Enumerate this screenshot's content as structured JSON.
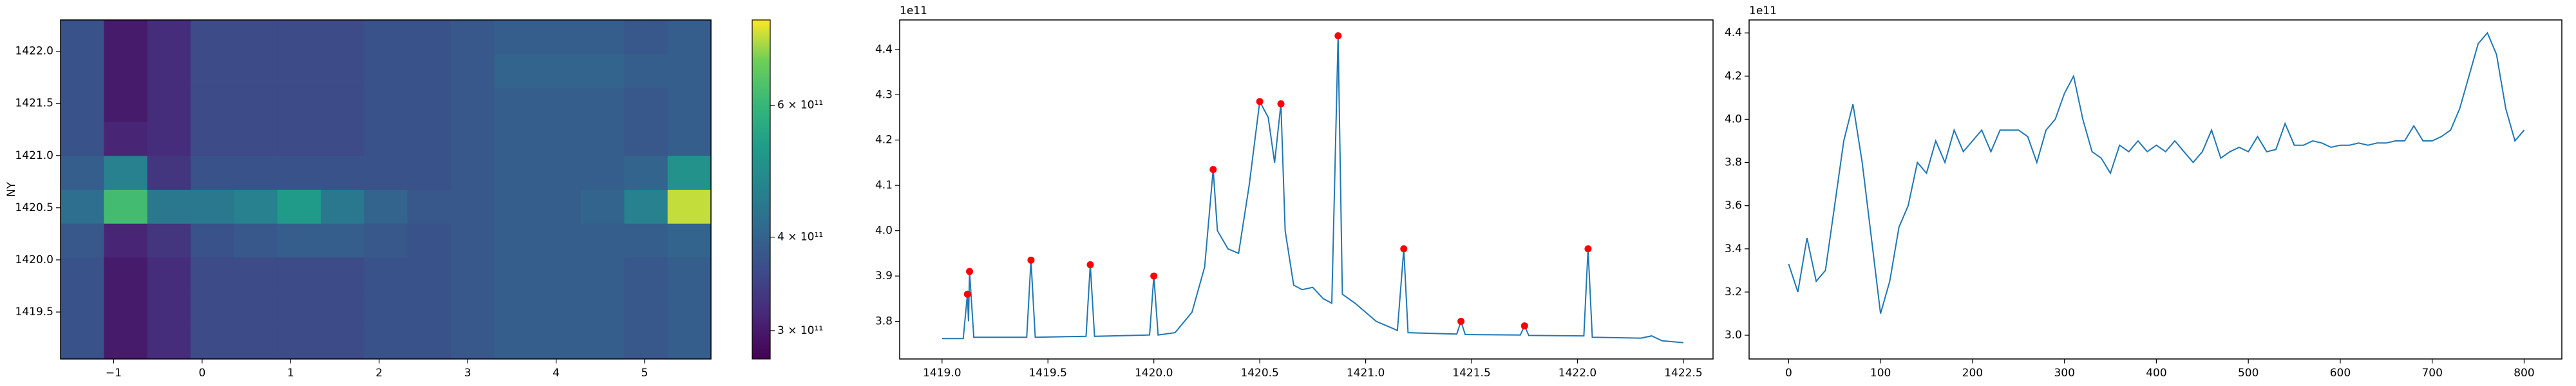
{
  "chart_data": [
    {
      "type": "heatmap",
      "ylabel": "NY",
      "scale": "log",
      "x": [
        -1.355,
        -0.865,
        -0.375,
        0.115,
        0.605,
        1.095,
        1.585,
        2.075,
        2.565,
        3.055,
        3.545,
        4.035,
        4.525,
        5.015,
        5.505
      ],
      "y": [
        1419.2125,
        1419.5375,
        1419.8625,
        1420.1875,
        1420.5125,
        1420.8375,
        1421.1625,
        1421.4875,
        1421.8125,
        1422.1375
      ],
      "z": [
        [
          370000000000.0,
          300000000000.0,
          320000000000.0,
          360000000000.0,
          360000000000.0,
          360000000000.0,
          360000000000.0,
          370000000000.0,
          370000000000.0,
          380000000000.0,
          390000000000.0,
          390000000000.0,
          390000000000.0,
          380000000000.0,
          390000000000.0
        ],
        [
          370000000000.0,
          300000000000.0,
          320000000000.0,
          360000000000.0,
          360000000000.0,
          360000000000.0,
          360000000000.0,
          370000000000.0,
          370000000000.0,
          380000000000.0,
          390000000000.0,
          390000000000.0,
          390000000000.0,
          380000000000.0,
          390000000000.0
        ],
        [
          370000000000.0,
          300000000000.0,
          320000000000.0,
          360000000000.0,
          360000000000.0,
          360000000000.0,
          360000000000.0,
          370000000000.0,
          370000000000.0,
          380000000000.0,
          390000000000.0,
          390000000000.0,
          390000000000.0,
          380000000000.0,
          390000000000.0
        ],
        [
          380000000000.0,
          310000000000.0,
          330000000000.0,
          370000000000.0,
          380000000000.0,
          390000000000.0,
          390000000000.0,
          380000000000.0,
          370000000000.0,
          380000000000.0,
          390000000000.0,
          390000000000.0,
          390000000000.0,
          390000000000.0,
          400000000000.0
        ],
        [
          420000000000.0,
          620000000000.0,
          440000000000.0,
          440000000000.0,
          460000000000.0,
          520000000000.0,
          440000000000.0,
          400000000000.0,
          380000000000.0,
          380000000000.0,
          390000000000.0,
          390000000000.0,
          400000000000.0,
          460000000000.0,
          740000000000.0
        ],
        [
          390000000000.0,
          460000000000.0,
          330000000000.0,
          370000000000.0,
          370000000000.0,
          370000000000.0,
          370000000000.0,
          370000000000.0,
          370000000000.0,
          380000000000.0,
          390000000000.0,
          390000000000.0,
          390000000000.0,
          400000000000.0,
          500000000000.0
        ],
        [
          370000000000.0,
          310000000000.0,
          320000000000.0,
          360000000000.0,
          360000000000.0,
          360000000000.0,
          360000000000.0,
          370000000000.0,
          370000000000.0,
          380000000000.0,
          390000000000.0,
          390000000000.0,
          390000000000.0,
          380000000000.0,
          390000000000.0
        ],
        [
          370000000000.0,
          300000000000.0,
          320000000000.0,
          360000000000.0,
          360000000000.0,
          360000000000.0,
          360000000000.0,
          370000000000.0,
          370000000000.0,
          380000000000.0,
          390000000000.0,
          390000000000.0,
          390000000000.0,
          380000000000.0,
          390000000000.0
        ],
        [
          370000000000.0,
          300000000000.0,
          320000000000.0,
          360000000000.0,
          360000000000.0,
          360000000000.0,
          360000000000.0,
          370000000000.0,
          370000000000.0,
          380000000000.0,
          400000000000.0,
          400000000000.0,
          400000000000.0,
          390000000000.0,
          390000000000.0
        ],
        [
          370000000000.0,
          300000000000.0,
          320000000000.0,
          360000000000.0,
          360000000000.0,
          360000000000.0,
          360000000000.0,
          370000000000.0,
          370000000000.0,
          380000000000.0,
          390000000000.0,
          390000000000.0,
          390000000000.0,
          380000000000.0,
          390000000000.0
        ]
      ],
      "xlim": [
        -1.6,
        5.75
      ],
      "ylim": [
        1419.05,
        1422.3
      ],
      "xticks": [
        {
          "value": -1,
          "label": "−1"
        },
        0,
        1,
        2,
        3,
        4,
        5
      ],
      "yticks": [
        1419.5,
        {
          "value": 1420,
          "label": "1420.0"
        },
        1420.5,
        {
          "value": 1421,
          "label": "1421.0"
        },
        1421.5,
        {
          "value": 1422,
          "label": "1422.0"
        }
      ],
      "clim": [
        275000000000.0,
        780000000000.0
      ],
      "cticks": [
        {
          "value": 300000000000.0,
          "label": "3 × 10¹¹"
        },
        {
          "value": 400000000000.0,
          "label": "4 × 10¹¹"
        },
        {
          "value": 600000000000.0,
          "label": "6 × 10¹¹"
        }
      ]
    },
    {
      "type": "line",
      "color": "#1f77b4",
      "offset_label": "1e11",
      "x": [
        1419.0,
        1419.1,
        1419.12,
        1419.125,
        1419.13,
        1419.15,
        1419.4,
        1419.42,
        1419.44,
        1419.68,
        1419.7,
        1419.72,
        1419.98,
        1420.0,
        1420.02,
        1420.1,
        1420.18,
        1420.24,
        1420.28,
        1420.3,
        1420.35,
        1420.4,
        1420.45,
        1420.5,
        1420.54,
        1420.57,
        1420.6,
        1420.62,
        1420.66,
        1420.7,
        1420.75,
        1420.8,
        1420.84,
        1420.87,
        1420.89,
        1420.95,
        1421.05,
        1421.15,
        1421.18,
        1421.2,
        1421.43,
        1421.45,
        1421.47,
        1421.73,
        1421.75,
        1421.77,
        1422.03,
        1422.05,
        1422.07,
        1422.3,
        1422.35,
        1422.4,
        1422.5
      ],
      "values": [
        3.762,
        3.762,
        3.86,
        3.8,
        3.91,
        3.765,
        3.765,
        3.935,
        3.765,
        3.767,
        3.925,
        3.767,
        3.77,
        3.9,
        3.77,
        3.775,
        3.82,
        3.92,
        4.135,
        4.0,
        3.96,
        3.95,
        4.1,
        4.285,
        4.25,
        4.15,
        4.28,
        4.0,
        3.88,
        3.87,
        3.875,
        3.85,
        3.84,
        4.43,
        3.86,
        3.84,
        3.8,
        3.78,
        3.96,
        3.775,
        3.772,
        3.8,
        3.771,
        3.77,
        3.79,
        3.769,
        3.768,
        3.96,
        3.765,
        3.763,
        3.768,
        3.757,
        3.753
      ],
      "markers": {
        "color": "#ff0000",
        "x": [
          1419.12,
          1419.13,
          1419.42,
          1419.7,
          1420.0,
          1420.28,
          1420.5,
          1420.6,
          1420.87,
          1421.18,
          1421.45,
          1421.75,
          1422.05
        ],
        "values": [
          3.86,
          3.91,
          3.935,
          3.925,
          3.9,
          4.135,
          4.285,
          4.28,
          4.43,
          3.96,
          3.8,
          3.79,
          3.96
        ]
      },
      "xlim": [
        1418.8,
        1422.64
      ],
      "ylim": [
        3.717,
        4.465
      ],
      "xticks": [
        {
          "value": 1419,
          "label": "1419.0"
        },
        1419.5,
        {
          "value": 1420,
          "label": "1420.0"
        },
        1420.5,
        {
          "value": 1421,
          "label": "1421.0"
        },
        1421.5,
        {
          "value": 1422,
          "label": "1422.0"
        },
        1422.5
      ],
      "yticks": [
        3.8,
        3.9,
        {
          "value": 4,
          "label": "4.0"
        },
        4.1,
        4.2,
        4.3,
        4.4
      ]
    },
    {
      "type": "line",
      "color": "#1f77b4",
      "offset_label": "1e11",
      "x": [
        0,
        10,
        20,
        30,
        40,
        50,
        60,
        70,
        80,
        90,
        100,
        110,
        120,
        130,
        140,
        150,
        160,
        170,
        180,
        190,
        200,
        210,
        220,
        230,
        240,
        250,
        260,
        270,
        280,
        290,
        300,
        310,
        320,
        330,
        340,
        350,
        360,
        370,
        380,
        390,
        400,
        410,
        420,
        430,
        440,
        450,
        460,
        470,
        480,
        490,
        500,
        510,
        520,
        530,
        540,
        550,
        560,
        570,
        580,
        590,
        600,
        610,
        620,
        630,
        640,
        650,
        660,
        670,
        680,
        690,
        700,
        710,
        720,
        730,
        740,
        750,
        760,
        770,
        780,
        790,
        800
      ],
      "values": [
        3.33,
        3.2,
        3.45,
        3.25,
        3.3,
        3.6,
        3.9,
        4.07,
        3.8,
        3.45,
        3.1,
        3.25,
        3.5,
        3.6,
        3.8,
        3.75,
        3.9,
        3.8,
        3.95,
        3.85,
        3.9,
        3.95,
        3.85,
        3.95,
        3.95,
        3.95,
        3.92,
        3.8,
        3.95,
        4.0,
        4.12,
        4.2,
        4.0,
        3.85,
        3.82,
        3.75,
        3.88,
        3.85,
        3.9,
        3.85,
        3.88,
        3.85,
        3.9,
        3.85,
        3.8,
        3.85,
        3.95,
        3.82,
        3.85,
        3.87,
        3.85,
        3.92,
        3.85,
        3.86,
        3.98,
        3.88,
        3.88,
        3.9,
        3.89,
        3.87,
        3.88,
        3.88,
        3.89,
        3.88,
        3.89,
        3.89,
        3.9,
        3.9,
        3.97,
        3.9,
        3.9,
        3.92,
        3.95,
        4.05,
        4.2,
        4.35,
        4.4,
        4.3,
        4.05,
        3.9,
        3.95
      ],
      "xlim": [
        -43,
        841
      ],
      "ylim": [
        2.89,
        4.46
      ],
      "xticks": [
        0,
        100,
        200,
        300,
        400,
        500,
        600,
        700,
        800
      ],
      "yticks": [
        {
          "value": 3,
          "label": "3.0"
        },
        3.2,
        3.4,
        3.6,
        3.8,
        {
          "value": 4,
          "label": "4.0"
        },
        4.2,
        4.4
      ]
    }
  ]
}
